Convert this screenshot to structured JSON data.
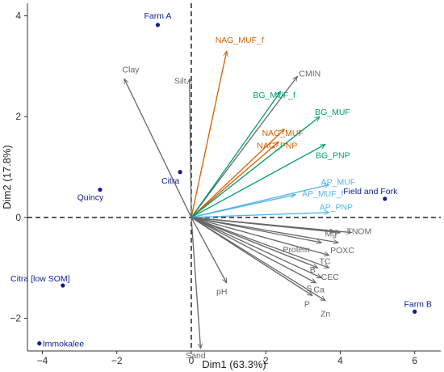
{
  "chart_data": {
    "type": "scatter",
    "subtype": "pca-biplot",
    "xlabel": "Dim1 (63.3%)",
    "ylabel": "Dim2 (17.8%)",
    "xlim": [
      -4.4,
      6.7
    ],
    "ylim": [
      -2.65,
      4.25
    ],
    "xticks": [
      -4,
      -2,
      0,
      2,
      4,
      6
    ],
    "yticks": [
      -2,
      0,
      2,
      4
    ],
    "zero_lines": "dashed",
    "grid": false,
    "colors": {
      "physical": "#666666",
      "nag": "#d55e00",
      "bg": "#009e73",
      "ap": "#56b4e9",
      "sites": "#0a1e8c"
    },
    "sites": [
      {
        "label": "Farm A",
        "x": -0.9,
        "y": 3.82
      },
      {
        "label": "Quincy",
        "x": -2.45,
        "y": 0.55
      },
      {
        "label": "Citra",
        "x": -0.3,
        "y": 0.9
      },
      {
        "label": "Citra [low SOM]",
        "x": -3.45,
        "y": -1.35
      },
      {
        "label": "Immokalee",
        "x": -4.08,
        "y": -2.5
      },
      {
        "label": "Field and Fork",
        "x": 5.2,
        "y": 0.37
      },
      {
        "label": "Farm B",
        "x": 6.0,
        "y": -1.87
      }
    ],
    "vectors": [
      {
        "label": "Clay",
        "x": -1.8,
        "y": 2.75,
        "group": "physical"
      },
      {
        "label": "Silt",
        "x": -0.05,
        "y": 2.75,
        "group": "physical"
      },
      {
        "label": "Sand",
        "x": 0.25,
        "y": -2.6,
        "group": "physical"
      },
      {
        "label": "pH",
        "x": 0.95,
        "y": -1.3,
        "group": "physical"
      },
      {
        "label": "NAG_MUF_f",
        "x": 0.95,
        "y": 3.3,
        "group": "nag"
      },
      {
        "label": "NAG_MUF",
        "x": 2.5,
        "y": 1.75,
        "group": "nag"
      },
      {
        "label": "NAG_PNP",
        "x": 2.35,
        "y": 1.5,
        "group": "nag"
      },
      {
        "label": "CMIN",
        "x": 2.85,
        "y": 2.8,
        "group": "physical"
      },
      {
        "label": "BG_MUF_f",
        "x": 2.4,
        "y": 2.5,
        "group": "bg"
      },
      {
        "label": "BG_MUF",
        "x": 3.45,
        "y": 2.0,
        "group": "bg"
      },
      {
        "label": "BG_PNP",
        "x": 3.6,
        "y": 1.45,
        "group": "bg"
      },
      {
        "label": "AP_MUF",
        "x": 3.7,
        "y": 0.65,
        "group": "ap"
      },
      {
        "label": "AP_MUF_f",
        "x": 2.8,
        "y": 0.45,
        "group": "ap"
      },
      {
        "label": "AP_PNP",
        "x": 3.7,
        "y": 0.1,
        "group": "ap"
      },
      {
        "label": "Mg",
        "x": 3.85,
        "y": -0.28,
        "group": "physical"
      },
      {
        "label": "TN",
        "x": 4.0,
        "y": -0.3,
        "group": "physical"
      },
      {
        "label": "OM",
        "x": 4.3,
        "y": -0.3,
        "group": "physical"
      },
      {
        "label": "POXC",
        "x": 3.95,
        "y": -0.5,
        "group": "physical"
      },
      {
        "label": "Protein",
        "x": 3.5,
        "y": -0.5,
        "group": "physical"
      },
      {
        "label": "TC",
        "x": 3.7,
        "y": -0.75,
        "group": "physical"
      },
      {
        "label": "CEC",
        "x": 3.7,
        "y": -1.0,
        "group": "physical"
      },
      {
        "label": "B",
        "x": 3.4,
        "y": -1.0,
        "group": "physical"
      },
      {
        "label": "Ca",
        "x": 3.5,
        "y": -1.2,
        "group": "physical"
      },
      {
        "label": "S",
        "x": 3.35,
        "y": -1.3,
        "group": "physical"
      },
      {
        "label": "P",
        "x": 3.25,
        "y": -1.55,
        "group": "physical"
      },
      {
        "label": "Zn",
        "x": 3.6,
        "y": -1.65,
        "group": "physical"
      }
    ]
  }
}
